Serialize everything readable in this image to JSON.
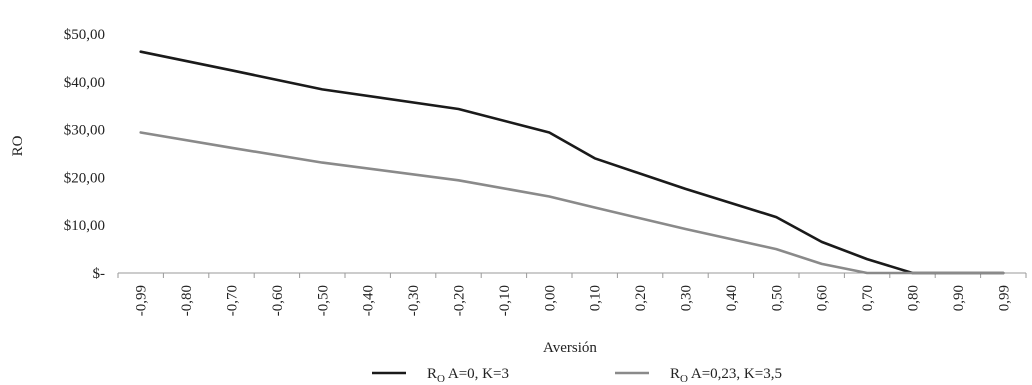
{
  "chart_data": {
    "type": "line",
    "xlabel": "Aversión",
    "ylabel": "RO",
    "ylim": [
      0,
      50
    ],
    "grid": false,
    "legend_position": "bottom",
    "x_tick_labels": [
      "-0,99",
      "-0,80",
      "-0,70",
      "-0,60",
      "-0,50",
      "-0,40",
      "-0,30",
      "-0,20",
      "-0,10",
      "0,00",
      "0,10",
      "0,20",
      "0,30",
      "0,40",
      "0,50",
      "0,60",
      "0,70",
      "0,80",
      "0,90",
      "0,99"
    ],
    "y_ticks": [
      0,
      10,
      20,
      30,
      40,
      50
    ],
    "y_tick_labels": [
      "$-",
      "$10,00",
      "$20,00",
      "$30,00",
      "$40,00",
      "$50,00"
    ],
    "series": [
      {
        "legend_main": "R",
        "legend_sub": "O",
        "legend_rest": " A=0, K=3",
        "color": "#1a1a1a",
        "values": [
          46.3,
          42.4,
          38.4,
          34.3,
          29.4,
          24.0,
          17.6,
          11.7,
          6.5,
          2.9,
          0.0,
          0.0,
          0.0,
          0.0
        ]
      },
      {
        "legend_main": "R",
        "legend_sub": "O",
        "legend_rest": " A=0,23, K=3,5",
        "color": "#8a8a8a",
        "values": [
          29.4,
          26.2,
          23.1,
          19.4,
          16.0,
          13.7,
          9.2,
          5.0,
          1.9,
          0.0,
          0.0,
          0.0,
          0.0,
          0.0
        ]
      }
    ],
    "series_x": [
      -0.99,
      -0.7,
      -0.5,
      -0.2,
      0.0,
      0.1,
      0.3,
      0.5,
      0.6,
      0.7,
      0.8,
      0.9,
      0.99,
      0.99
    ]
  }
}
